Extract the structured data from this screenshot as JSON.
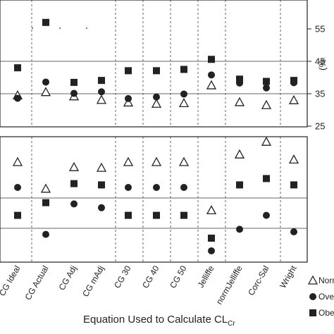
{
  "chart_data": [
    {
      "type": "scatter",
      "panel": "top",
      "categories": [
        "CG Ideal",
        "CG Actual",
        "CG Adj",
        "CG mAdj",
        "CG 30",
        "CG 40",
        "CG 50",
        "Jelliffe",
        "normJelliffe",
        "Corc-Sal",
        "Wright"
      ],
      "ylim": [
        25,
        60
      ],
      "yticks": [
        25,
        35,
        45,
        55
      ],
      "series": [
        {
          "name": "Normal",
          "marker": "triangle",
          "values": [
            34.5,
            35.5,
            34.2,
            33.1,
            32.3,
            31.9,
            32.1,
            37.6,
            32.4,
            31.5,
            33.0
          ]
        },
        {
          "name": "Overweight",
          "marker": "circle",
          "values": [
            33.6,
            38.6,
            35.1,
            35.6,
            33.5,
            34.0,
            34.9,
            40.8,
            38.3,
            36.8,
            38.4
          ]
        },
        {
          "name": "Obese",
          "marker": "square",
          "values": [
            43.0,
            57.0,
            38.5,
            39.1,
            42.1,
            42.1,
            42.5,
            45.6,
            39.5,
            38.8,
            39.1
          ]
        }
      ]
    },
    {
      "type": "scatter",
      "panel": "bottom",
      "categories": [
        "CG Ideal",
        "CG Actual",
        "CG Adj",
        "CG mAdj",
        "CG 30",
        "CG 40",
        "CG 50",
        "Jelliffe",
        "normJelliffe",
        "Corc-Sal",
        "Wright"
      ],
      "ylim": [
        0,
        100
      ],
      "series": [
        {
          "name": "Normal",
          "marker": "triangle",
          "values": [
            75,
            54,
            71,
            70.5,
            75,
            75,
            75,
            37,
            81,
            91,
            77
          ]
        },
        {
          "name": "Overweight",
          "marker": "circle",
          "values": [
            55,
            18,
            42,
            39,
            55,
            55,
            55,
            5,
            22,
            33,
            20
          ]
        },
        {
          "name": "Obese",
          "marker": "square",
          "values": [
            33,
            43,
            58,
            57,
            33,
            33,
            33,
            15,
            57,
            62,
            57
          ]
        }
      ]
    }
  ],
  "top_axis": {
    "tick_labels": [
      "25",
      "35",
      "45",
      "55"
    ],
    "label_fragment": "(%"
  },
  "x_categories": [
    "CG Ideal",
    "CG Actual",
    "CG Adj",
    "CG mAdj",
    "CG 30",
    "CG 40",
    "CG 50",
    "Jelliffe",
    "normJelliffe",
    "Corc-Sal",
    "Wright"
  ],
  "x_title": {
    "main": "Equation Used to Calculate CL",
    "subscript": "Cr"
  },
  "legend": {
    "items": [
      {
        "marker": "triangle",
        "label": "Norm"
      },
      {
        "marker": "circle",
        "label": "Over"
      },
      {
        "marker": "square",
        "label": "Obes"
      }
    ]
  },
  "colors": {
    "marker_fill": "#222222",
    "axis": "#222222",
    "background": "#ffffff"
  }
}
